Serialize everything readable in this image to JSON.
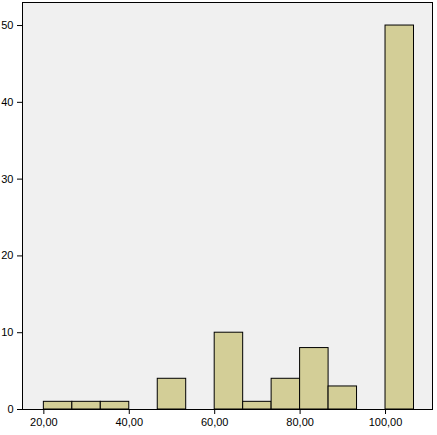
{
  "chart_data": {
    "type": "histogram",
    "bins": [
      20,
      26.67,
      33.33,
      40,
      46.67,
      53.33,
      60,
      66.67,
      73.33,
      80,
      86.67,
      93.33,
      100,
      106.67
    ],
    "values": [
      1,
      1,
      1,
      0,
      4,
      0,
      10,
      1,
      4,
      8,
      3,
      0,
      50
    ],
    "color": "#d3ce97",
    "xlim": [
      15,
      111
    ],
    "xticks": [
      {
        "value": 20,
        "label": "20,00"
      },
      {
        "value": 40,
        "label": "40,00"
      },
      {
        "value": 60,
        "label": "60,00"
      },
      {
        "value": 80,
        "label": "80,00"
      },
      {
        "value": 100,
        "label": "100,00"
      }
    ],
    "ylim": [
      0,
      53
    ],
    "yticks": [
      0,
      10,
      20,
      30,
      40,
      50
    ],
    "grid": false
  }
}
